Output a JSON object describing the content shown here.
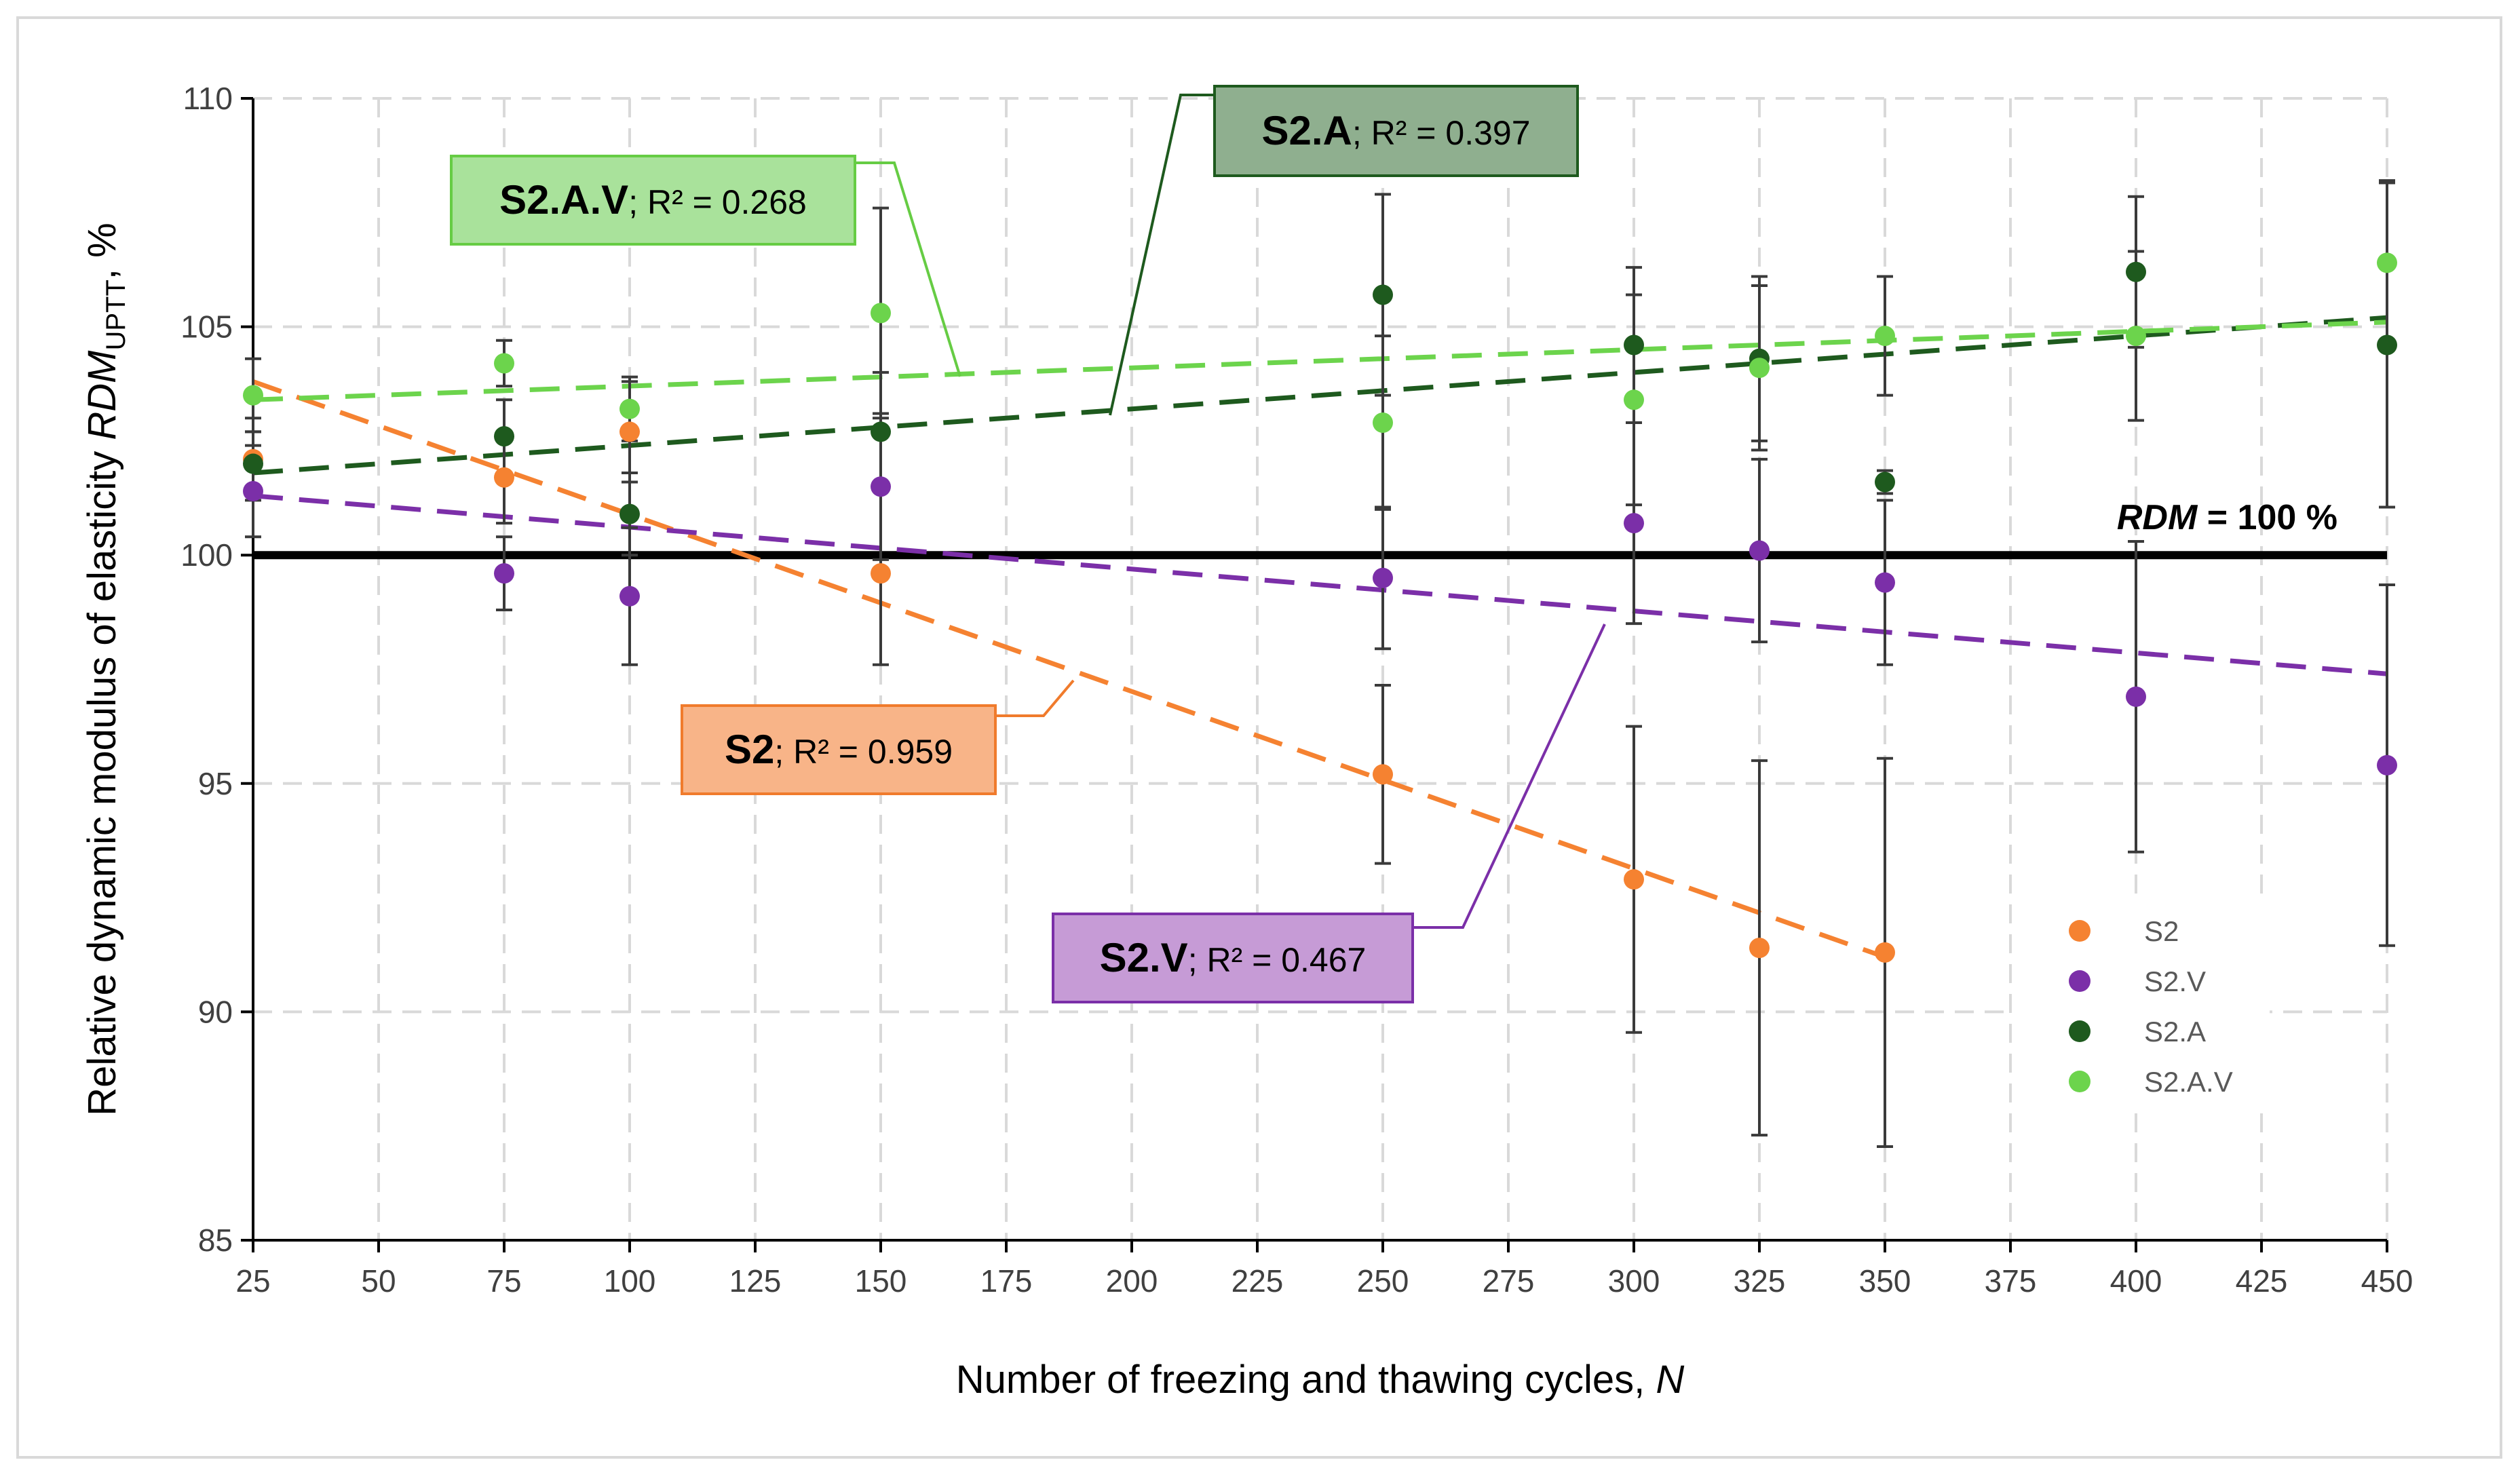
{
  "chart_data": {
    "type": "scatter",
    "xlabel": "Number of freezing and thawing cycles, ",
    "xlabel_var": "N",
    "ylabel": "Relative dynamic modulus of elasticity ",
    "ylabel_var": "RDM",
    "ylabel_sub": "UPTT",
    "ylabel_tail": ", %",
    "xlim": [
      25,
      450
    ],
    "ylim": [
      85,
      110
    ],
    "x_ticks": [
      25,
      50,
      75,
      100,
      125,
      150,
      175,
      200,
      225,
      250,
      275,
      300,
      325,
      350,
      375,
      400,
      425,
      450
    ],
    "y_ticks": [
      85,
      90,
      95,
      100,
      105,
      110
    ],
    "grid": true,
    "legend_position": "bottom-right",
    "reference_line": {
      "y": 100,
      "label_var": "RDM",
      "label_rest": " = 100 %"
    },
    "series": [
      {
        "name": "S2",
        "color": "#f58231",
        "x": [
          25,
          75,
          100,
          150,
          250,
          300,
          325,
          350
        ],
        "y": [
          102.1,
          101.7,
          102.7,
          99.6,
          95.2,
          92.9,
          91.4,
          91.3
        ],
        "err": [
          0.9,
          1.0,
          1.1,
          2.0,
          1.95,
          3.35,
          4.1,
          4.25
        ],
        "trend": {
          "x": [
            25,
            350
          ],
          "y": [
            103.8,
            91.2
          ]
        },
        "label_name": "S2",
        "label_r2": "R² = 0.959"
      },
      {
        "name": "S2.V",
        "color": "#7b2fa8",
        "x": [
          25,
          75,
          100,
          150,
          250,
          300,
          325,
          350,
          400,
          450
        ],
        "y": [
          101.4,
          99.6,
          99.1,
          101.5,
          99.5,
          100.7,
          100.1,
          99.4,
          96.9,
          95.4
        ],
        "err": [
          1.0,
          0.8,
          1.5,
          1.6,
          1.55,
          2.2,
          2.0,
          1.8,
          3.4,
          3.95
        ],
        "trend": {
          "x": [
            25,
            450
          ],
          "y": [
            101.3,
            97.4
          ]
        },
        "label_name": "S2.V",
        "label_r2": "R² = 0.467"
      },
      {
        "name": "S2.A",
        "color": "#1e5a1e",
        "x": [
          25,
          75,
          100,
          150,
          250,
          300,
          325,
          350,
          400,
          450
        ],
        "y": [
          102.0,
          102.6,
          100.9,
          102.7,
          105.7,
          104.6,
          104.3,
          101.6,
          106.2,
          104.6
        ],
        "err": [
          0.7,
          0.8,
          0.9,
          1.3,
          2.2,
          1.7,
          1.8,
          0.25,
          1.65,
          3.55
        ],
        "trend": {
          "x": [
            25,
            450
          ],
          "y": [
            101.8,
            105.2
          ]
        },
        "label_name": "S2.A",
        "label_r2": "R² = 0.397"
      },
      {
        "name": "S2.A.V",
        "color": "#6cd44c",
        "x": [
          25,
          75,
          100,
          150,
          250,
          300,
          325,
          350,
          400,
          450
        ],
        "y": [
          103.5,
          104.2,
          103.2,
          105.3,
          102.9,
          103.4,
          104.1,
          104.8,
          104.8,
          106.4
        ],
        "err": [
          0.8,
          0.5,
          0.7,
          2.3,
          1.9,
          2.3,
          1.8,
          1.3,
          1.85,
          1.8
        ],
        "trend": {
          "x": [
            25,
            450
          ],
          "y": [
            103.4,
            105.1
          ]
        },
        "label_name": "S2.A.V",
        "label_r2": "R² = 0.268"
      }
    ],
    "label_boxes": [
      {
        "series": 3,
        "fill": "#a9e29b",
        "stroke": "#66cc44"
      },
      {
        "series": 2,
        "fill": "#8faf8f",
        "stroke": "#1e5a1e"
      },
      {
        "series": 0,
        "fill": "#f8b488",
        "stroke": "#f07b2c"
      },
      {
        "series": 1,
        "fill": "#c69bd6",
        "stroke": "#7b2fa8"
      }
    ]
  }
}
